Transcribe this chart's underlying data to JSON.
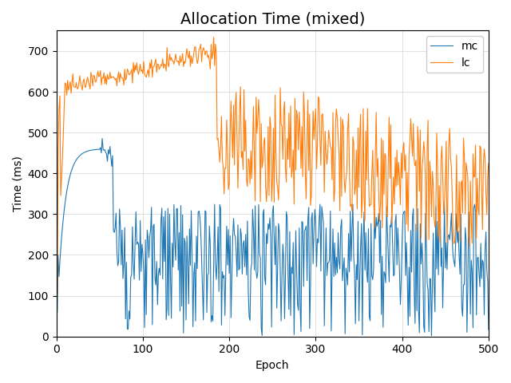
{
  "title": "Allocation Time (mixed)",
  "xlabel": "Epoch",
  "ylabel": "Time (ms)",
  "xlim": [
    0,
    500
  ],
  "ylim": [
    0,
    750
  ],
  "yticks": [
    0,
    100,
    200,
    300,
    400,
    500,
    600,
    700
  ],
  "xticks": [
    0,
    100,
    200,
    300,
    400,
    500
  ],
  "mc_color": "#1f77b4",
  "lc_color": "#ff7f0e",
  "mc_label": "mc",
  "lc_label": "lc",
  "linewidth": 0.8,
  "grid": true,
  "background_color": "#ffffff",
  "title_fontsize": 14,
  "legend_loc": "upper right"
}
